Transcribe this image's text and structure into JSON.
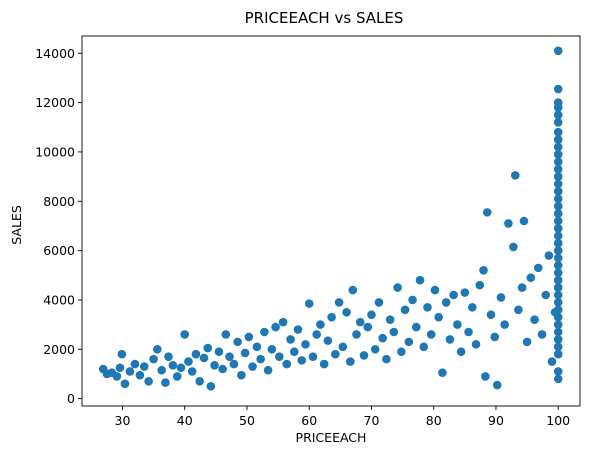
{
  "chart_data": {
    "type": "scatter",
    "title": "PRICEEACH vs SALES",
    "xlabel": "PRICEEACH",
    "ylabel": "SALES",
    "xlim": [
      23.5,
      103.5
    ],
    "ylim": [
      -300,
      14700
    ],
    "xticks": [
      30,
      40,
      50,
      60,
      70,
      80,
      90,
      100
    ],
    "yticks": [
      0,
      2000,
      4000,
      6000,
      8000,
      10000,
      12000,
      14000
    ],
    "grid": false,
    "legend": "none",
    "marker_color": "#1f77b4",
    "series": [
      {
        "points": [
          [
            26.9,
            1200
          ],
          [
            27.5,
            1000
          ],
          [
            28.3,
            1050
          ],
          [
            29.1,
            900
          ],
          [
            29.6,
            1250
          ],
          [
            29.9,
            1800
          ],
          [
            30.4,
            600
          ],
          [
            31.2,
            1100
          ],
          [
            32.0,
            1400
          ],
          [
            32.8,
            950
          ],
          [
            33.5,
            1300
          ],
          [
            34.2,
            700
          ],
          [
            35.0,
            1600
          ],
          [
            35.6,
            2000
          ],
          [
            36.3,
            1150
          ],
          [
            36.9,
            650
          ],
          [
            37.4,
            1700
          ],
          [
            38.1,
            1350
          ],
          [
            38.8,
            900
          ],
          [
            39.4,
            1250
          ],
          [
            40.0,
            2600
          ],
          [
            40.6,
            1500
          ],
          [
            41.2,
            1100
          ],
          [
            41.8,
            1800
          ],
          [
            42.4,
            700
          ],
          [
            43.1,
            1650
          ],
          [
            43.7,
            2050
          ],
          [
            44.2,
            500
          ],
          [
            44.8,
            1350
          ],
          [
            45.5,
            1900
          ],
          [
            46.1,
            1200
          ],
          [
            46.6,
            2600
          ],
          [
            47.2,
            1700
          ],
          [
            47.9,
            1400
          ],
          [
            48.5,
            2300
          ],
          [
            49.1,
            950
          ],
          [
            49.7,
            1850
          ],
          [
            50.3,
            2500
          ],
          [
            50.9,
            1300
          ],
          [
            51.6,
            2100
          ],
          [
            52.2,
            1600
          ],
          [
            52.8,
            2700
          ],
          [
            53.4,
            1150
          ],
          [
            54.0,
            2000
          ],
          [
            54.6,
            2900
          ],
          [
            55.2,
            1700
          ],
          [
            55.8,
            3100
          ],
          [
            56.4,
            1400
          ],
          [
            57.0,
            2400
          ],
          [
            57.6,
            1900
          ],
          [
            58.2,
            2800
          ],
          [
            58.8,
            1550
          ],
          [
            59.4,
            2200
          ],
          [
            60.0,
            3850
          ],
          [
            60.6,
            1700
          ],
          [
            61.2,
            2600
          ],
          [
            61.8,
            3000
          ],
          [
            62.4,
            1400
          ],
          [
            63.0,
            2350
          ],
          [
            63.6,
            3300
          ],
          [
            64.2,
            1800
          ],
          [
            64.8,
            3900
          ],
          [
            65.4,
            2100
          ],
          [
            66.0,
            3500
          ],
          [
            66.6,
            1500
          ],
          [
            67.0,
            4400
          ],
          [
            67.6,
            2600
          ],
          [
            68.2,
            3100
          ],
          [
            68.8,
            1750
          ],
          [
            69.4,
            2900
          ],
          [
            70.0,
            3400
          ],
          [
            70.6,
            2000
          ],
          [
            71.2,
            3900
          ],
          [
            71.8,
            2450
          ],
          [
            72.4,
            1600
          ],
          [
            73.0,
            3200
          ],
          [
            73.6,
            2700
          ],
          [
            74.2,
            4500
          ],
          [
            74.8,
            1900
          ],
          [
            75.4,
            3600
          ],
          [
            76.0,
            2300
          ],
          [
            76.6,
            4000
          ],
          [
            77.2,
            2900
          ],
          [
            77.8,
            4800
          ],
          [
            78.4,
            2100
          ],
          [
            79.0,
            3700
          ],
          [
            79.6,
            2600
          ],
          [
            80.2,
            4400
          ],
          [
            80.8,
            3300
          ],
          [
            81.4,
            1050
          ],
          [
            82.0,
            3900
          ],
          [
            82.6,
            2400
          ],
          [
            83.2,
            4200
          ],
          [
            83.8,
            3000
          ],
          [
            84.4,
            1900
          ],
          [
            85.0,
            4300
          ],
          [
            85.6,
            2700
          ],
          [
            86.2,
            3700
          ],
          [
            86.8,
            2200
          ],
          [
            87.4,
            4600
          ],
          [
            88.0,
            5200
          ],
          [
            88.3,
            900
          ],
          [
            88.6,
            7550
          ],
          [
            89.2,
            3400
          ],
          [
            89.8,
            2500
          ],
          [
            90.2,
            550
          ],
          [
            90.8,
            4100
          ],
          [
            91.4,
            3000
          ],
          [
            92.0,
            7100
          ],
          [
            92.8,
            6150
          ],
          [
            93.1,
            9050
          ],
          [
            93.6,
            3600
          ],
          [
            94.2,
            4500
          ],
          [
            94.5,
            7200
          ],
          [
            95.0,
            2300
          ],
          [
            95.6,
            4900
          ],
          [
            96.2,
            3200
          ],
          [
            96.8,
            5300
          ],
          [
            97.4,
            2600
          ],
          [
            98.0,
            4200
          ],
          [
            98.5,
            5800
          ],
          [
            99.0,
            1500
          ],
          [
            99.5,
            3500
          ],
          [
            100,
            14100
          ],
          [
            100,
            12550
          ],
          [
            100,
            12000
          ],
          [
            100,
            11800
          ],
          [
            100,
            11500
          ],
          [
            100,
            11200
          ],
          [
            100,
            10800
          ],
          [
            100,
            10500
          ],
          [
            100,
            10200
          ],
          [
            100,
            9900
          ],
          [
            100,
            9600
          ],
          [
            100,
            9300
          ],
          [
            100,
            9000
          ],
          [
            100,
            8700
          ],
          [
            100,
            8400
          ],
          [
            100,
            8100
          ],
          [
            100,
            7800
          ],
          [
            100,
            7500
          ],
          [
            100,
            7200
          ],
          [
            100,
            6900
          ],
          [
            100,
            6600
          ],
          [
            100,
            6300
          ],
          [
            100,
            6000
          ],
          [
            100,
            5700
          ],
          [
            100,
            5400
          ],
          [
            100,
            5100
          ],
          [
            100,
            4800
          ],
          [
            100,
            4500
          ],
          [
            100,
            4200
          ],
          [
            100,
            3900
          ],
          [
            100,
            3600
          ],
          [
            100,
            3300
          ],
          [
            100,
            3000
          ],
          [
            100,
            2700
          ],
          [
            100,
            2400
          ],
          [
            100,
            2100
          ],
          [
            100,
            1800
          ],
          [
            100,
            1100
          ],
          [
            100,
            800
          ]
        ]
      }
    ]
  }
}
